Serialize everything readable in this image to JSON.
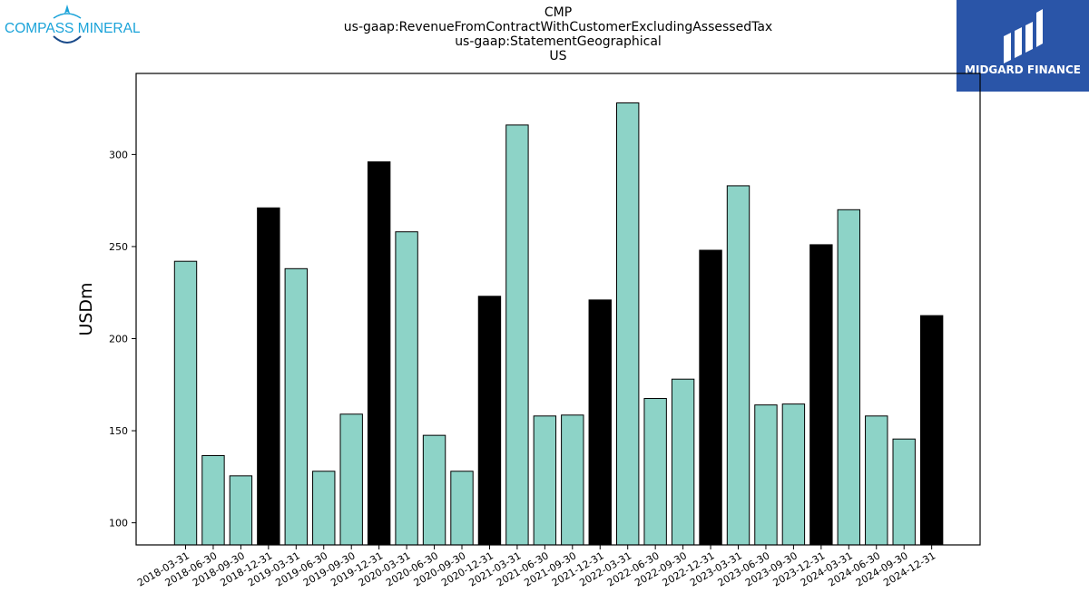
{
  "header": {
    "title_lines": [
      "CMP",
      "us-gaap:RevenueFromContractWithCustomerExcludingAssessedTax",
      "us-gaap:StatementGeographical",
      "US"
    ]
  },
  "logos": {
    "left": {
      "text": "COMPASS MINERALS",
      "color": "#1aa3d9"
    },
    "right": {
      "text": "MIDGARD FINANCE",
      "background": "#2a55a8",
      "color": "#ffffff"
    }
  },
  "chart_data": {
    "type": "bar",
    "ylabel": "USDm",
    "xlabel": "",
    "ylim": [
      88,
      344
    ],
    "yticks": [
      100,
      150,
      200,
      250,
      300
    ],
    "colors": {
      "quarter": "#8dd3c7",
      "year_end": "#000000"
    },
    "categories": [
      "2018-03-31",
      "2018-06-30",
      "2018-09-30",
      "2018-12-31",
      "2019-03-31",
      "2019-06-30",
      "2019-09-30",
      "2019-12-31",
      "2020-03-31",
      "2020-06-30",
      "2020-09-30",
      "2020-12-31",
      "2021-03-31",
      "2021-06-30",
      "2021-09-30",
      "2021-12-31",
      "2022-03-31",
      "2022-06-30",
      "2022-09-30",
      "2022-12-31",
      "2023-03-31",
      "2023-06-30",
      "2023-09-30",
      "2023-12-31",
      "2024-03-31",
      "2024-06-30",
      "2024-09-30",
      "2024-12-31"
    ],
    "values": [
      242,
      136.5,
      125.5,
      271,
      238,
      128,
      159,
      296,
      258,
      147.5,
      128,
      223,
      316,
      158,
      158.5,
      221,
      328,
      167.5,
      178,
      248,
      283,
      164,
      164.5,
      251,
      270,
      158,
      145.5,
      212.5
    ],
    "highlight_year_end": true
  }
}
